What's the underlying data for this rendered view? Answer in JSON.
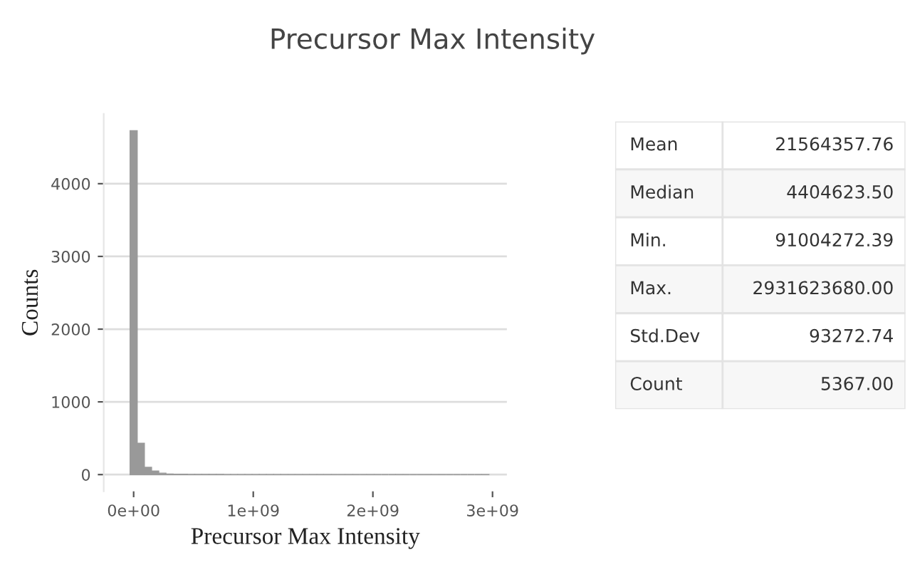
{
  "chart_data": [
    {
      "type": "histogram",
      "title": "Precursor Max Intensity",
      "xlabel": "Precursor Max Intensity",
      "ylabel": "Counts",
      "bins": [
        -30000000,
        30000000,
        90000000,
        150000000,
        210000000,
        270000000,
        330000000,
        390000000,
        450000000,
        510000000,
        570000000,
        630000000,
        690000000,
        750000000,
        810000000,
        870000000,
        930000000,
        990000000,
        1050000000,
        1110000000,
        1170000000,
        1230000000,
        1290000000,
        1350000000,
        1410000000,
        1470000000,
        1530000000,
        1590000000,
        1650000000,
        1710000000,
        1770000000,
        1830000000,
        1890000000,
        1950000000,
        2010000000,
        2070000000,
        2130000000,
        2190000000,
        2250000000,
        2310000000,
        2370000000,
        2430000000,
        2490000000,
        2550000000,
        2610000000,
        2670000000,
        2730000000,
        2790000000,
        2850000000,
        2910000000,
        2970000000
      ],
      "values": [
        4730,
        430,
        100,
        50,
        20,
        8,
        5,
        4,
        3,
        3,
        2,
        2,
        2,
        1,
        1,
        1,
        1,
        1,
        1,
        1,
        1,
        1,
        0,
        1,
        0,
        1,
        0,
        1,
        0,
        0,
        1,
        0,
        0,
        1,
        0,
        0,
        0,
        1,
        0,
        0,
        0,
        0,
        1,
        0,
        0,
        0,
        0,
        0,
        0,
        1
      ],
      "color": "#999999",
      "xlim": [
        -250000000,
        3120000000
      ],
      "ylim": [
        -230,
        4960
      ],
      "xticks": [
        {
          "value": 0,
          "label": "0e+00"
        },
        {
          "value": 1000000000,
          "label": "1e+09"
        },
        {
          "value": 2000000000,
          "label": "2e+09"
        },
        {
          "value": 3000000000,
          "label": "3e+09"
        }
      ],
      "yticks": [
        0,
        1000,
        2000,
        3000,
        4000
      ],
      "grid": "y"
    },
    {
      "type": "other",
      "categories": [
        "Mean",
        "Median",
        "Min.",
        "Max.",
        "Std.Dev",
        "Count"
      ],
      "values": [
        21564357.76,
        4404623.5,
        91004272.39,
        2931623680,
        93272.74,
        5367
      ],
      "value_labels": [
        "21564357.76",
        "4404623.50",
        "91004272.39",
        "2931623680.00",
        "93272.74",
        "5367.00"
      ]
    }
  ]
}
